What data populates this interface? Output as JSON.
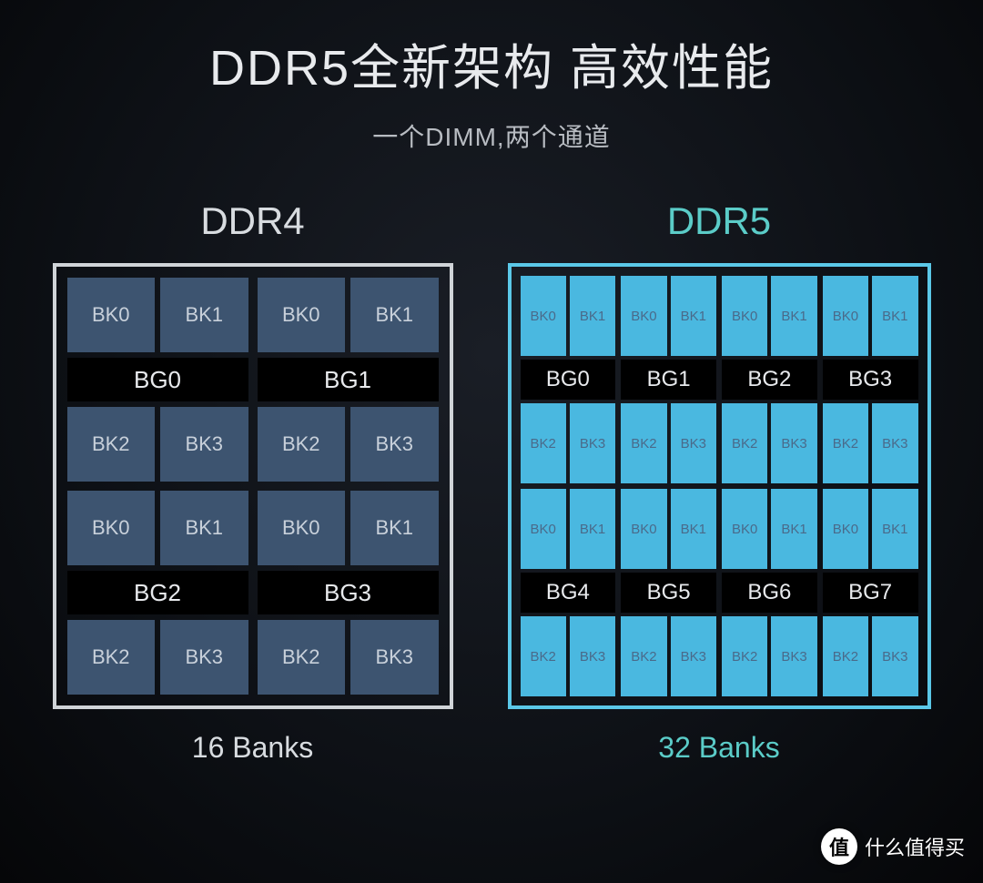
{
  "colors": {
    "title": "#e8eaed",
    "subtitle": "#b8bcc2",
    "ddr4_title": "#d8dce0",
    "ddr5_title": "#5bccc8",
    "ddr4_border": "#d0d4d8",
    "ddr5_border": "#5bc8e8",
    "ddr4_bk_bg": "#3d5470",
    "ddr4_bk_text": "#c8d0da",
    "ddr5_bk_bg": "#4ab8e0",
    "ddr5_bk_text": "#4a6a8a",
    "bg_label_bg": "#000000",
    "bg_label_text": "#e8eaed",
    "ddr4_caption": "#d8dce0",
    "ddr5_caption": "#5bccc8"
  },
  "title": "DDR5全新架构 高效性能",
  "subtitle": "一个DIMM,两个通道",
  "ddr4": {
    "title": "DDR4",
    "caption": "16 Banks",
    "groups": [
      {
        "bg": "BG0",
        "bk": [
          "BK0",
          "BK1",
          "BK2",
          "BK3"
        ]
      },
      {
        "bg": "BG1",
        "bk": [
          "BK0",
          "BK1",
          "BK2",
          "BK3"
        ]
      },
      {
        "bg": "BG2",
        "bk": [
          "BK0",
          "BK1",
          "BK2",
          "BK3"
        ]
      },
      {
        "bg": "BG3",
        "bk": [
          "BK0",
          "BK1",
          "BK2",
          "BK3"
        ]
      }
    ]
  },
  "ddr5": {
    "title": "DDR5",
    "caption": "32 Banks",
    "groups": [
      {
        "bg": "BG0",
        "bk": [
          "BK0",
          "BK1",
          "BK2",
          "BK3"
        ]
      },
      {
        "bg": "BG1",
        "bk": [
          "BK0",
          "BK1",
          "BK2",
          "BK3"
        ]
      },
      {
        "bg": "BG2",
        "bk": [
          "BK0",
          "BK1",
          "BK2",
          "BK3"
        ]
      },
      {
        "bg": "BG3",
        "bk": [
          "BK0",
          "BK1",
          "BK2",
          "BK3"
        ]
      },
      {
        "bg": "BG4",
        "bk": [
          "BK0",
          "BK1",
          "BK2",
          "BK3"
        ]
      },
      {
        "bg": "BG5",
        "bk": [
          "BK0",
          "BK1",
          "BK2",
          "BK3"
        ]
      },
      {
        "bg": "BG6",
        "bk": [
          "BK0",
          "BK1",
          "BK2",
          "BK3"
        ]
      },
      {
        "bg": "BG7",
        "bk": [
          "BK0",
          "BK1",
          "BK2",
          "BK3"
        ]
      }
    ]
  },
  "watermark": {
    "badge": "值",
    "text": "什么值得买"
  }
}
